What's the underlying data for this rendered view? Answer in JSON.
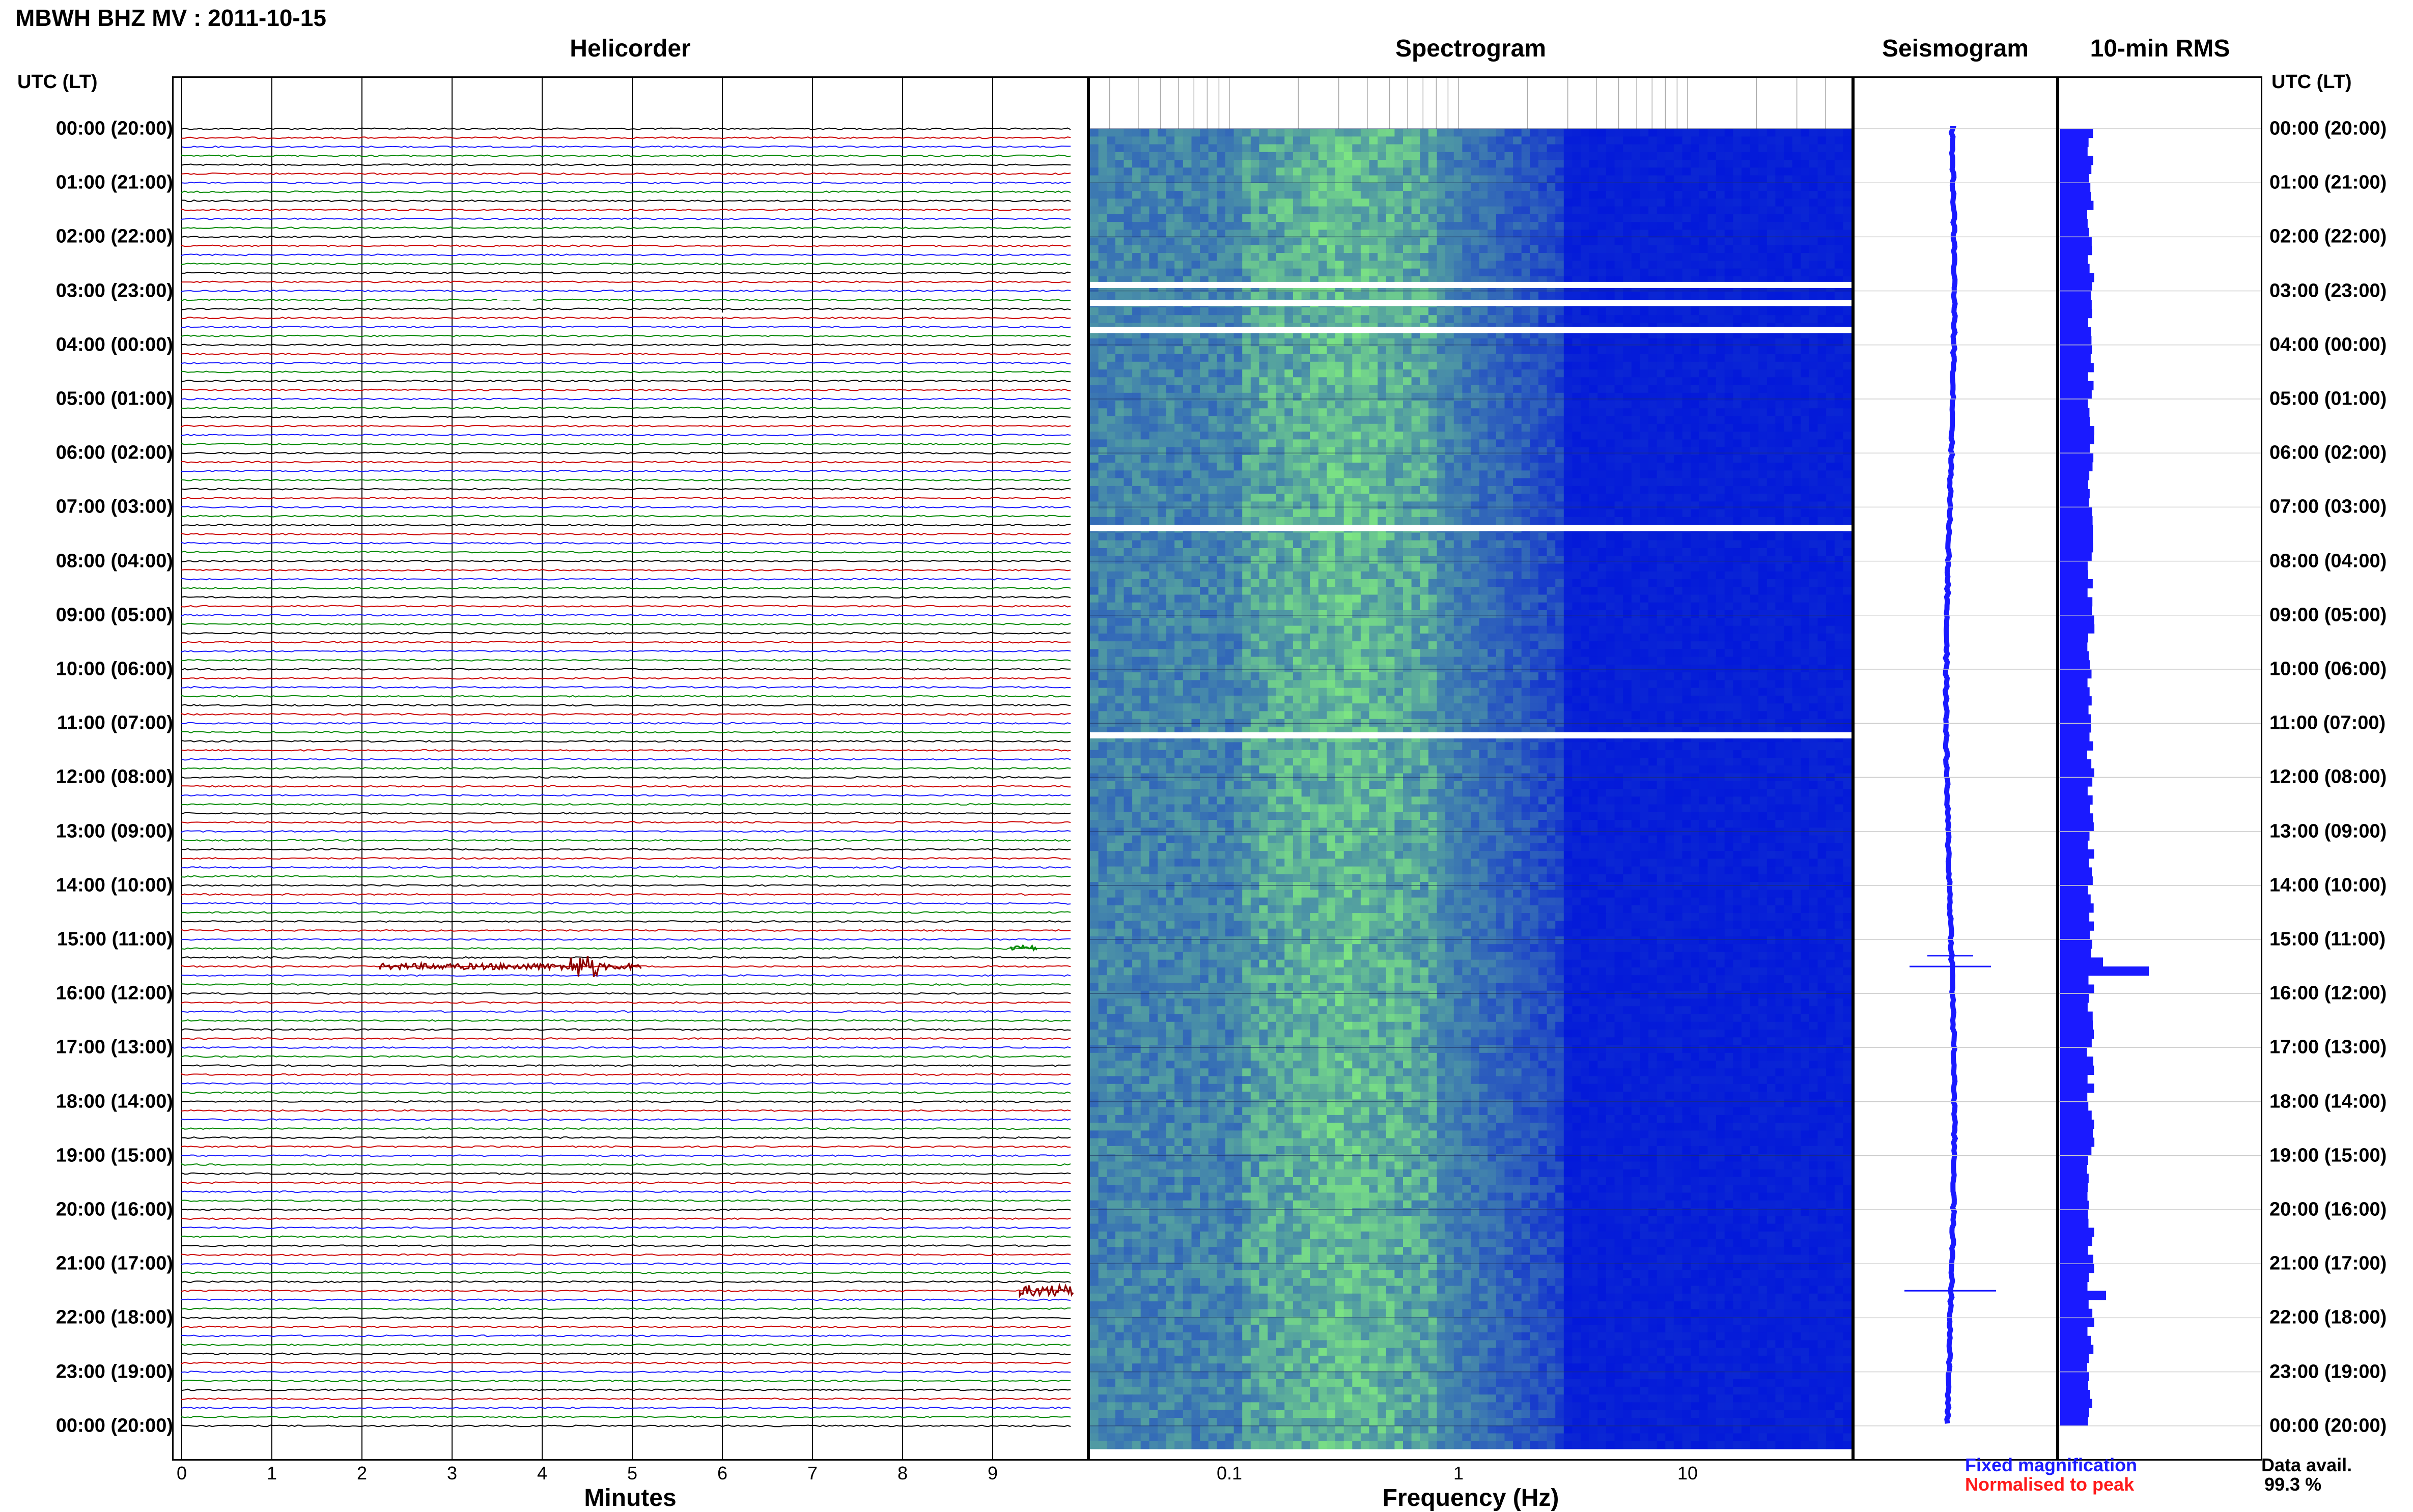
{
  "header": {
    "title": "MBWH BHZ MV : 2011-10-15"
  },
  "panels": {
    "helicorder": {
      "title": "Helicorder",
      "xlabel": "Minutes",
      "ticks": [
        "0",
        "1",
        "2",
        "3",
        "4",
        "5",
        "6",
        "7",
        "8",
        "9"
      ]
    },
    "spectrogram": {
      "title": "Spectrogram",
      "xlabel": "Frequency (Hz)",
      "ticks": [
        "0.1",
        "1",
        "10"
      ]
    },
    "seismogram": {
      "title": "Seismogram"
    },
    "rms": {
      "title": "10-min RMS"
    }
  },
  "time_axis": {
    "label_left": "UTC (LT)",
    "label_right": "UTC (LT)",
    "labels": [
      "00:00 (20:00)",
      "01:00 (21:00)",
      "02:00 (22:00)",
      "03:00 (23:00)",
      "04:00 (00:00)",
      "05:00 (01:00)",
      "06:00 (02:00)",
      "07:00 (03:00)",
      "08:00 (04:00)",
      "09:00 (05:00)",
      "10:00 (06:00)",
      "11:00 (07:00)",
      "12:00 (08:00)",
      "13:00 (09:00)",
      "14:00 (10:00)",
      "15:00 (11:00)",
      "16:00 (12:00)",
      "17:00 (13:00)",
      "18:00 (14:00)",
      "19:00 (15:00)",
      "20:00 (16:00)",
      "21:00 (17:00)",
      "22:00 (18:00)",
      "23:00 (19:00)",
      "00:00 (20:00)"
    ]
  },
  "legend": {
    "fixed": "Fixed magnification",
    "normalised": "Normalised to peak",
    "fixed_color": "#1a1aff",
    "normalised_color": "#ff1a1a"
  },
  "data_availability": {
    "label": "Data avail.",
    "value": "99.3 %"
  },
  "colors": {
    "trace_cycle": [
      "#000000",
      "#cc0000",
      "#1a1aff",
      "#008800"
    ],
    "event_color": "#8b0000",
    "rms_bar": "#1a1aff",
    "spec_low": "#00008b",
    "spec_high": "#7fff7f"
  },
  "chart_data": {
    "type": "heatmap",
    "rms_10min_relative": {
      "baseline": 1.0,
      "spikes": [
        {
          "time": "15:20",
          "value": 1.4
        },
        {
          "time": "15:30",
          "value": 2.9
        },
        {
          "time": "21:30",
          "value": 1.5
        }
      ]
    },
    "events": [
      {
        "time": "15:30",
        "minutes": [
          2.2,
          5.1
        ]
      },
      {
        "time": "15:10",
        "minutes": [
          9.2,
          9.5
        ]
      },
      {
        "time": "21:30",
        "minutes": [
          9.3,
          9.9
        ]
      }
    ],
    "gaps": [
      "02:50",
      "03:10",
      "03:40",
      "07:20",
      "11:10"
    ]
  }
}
